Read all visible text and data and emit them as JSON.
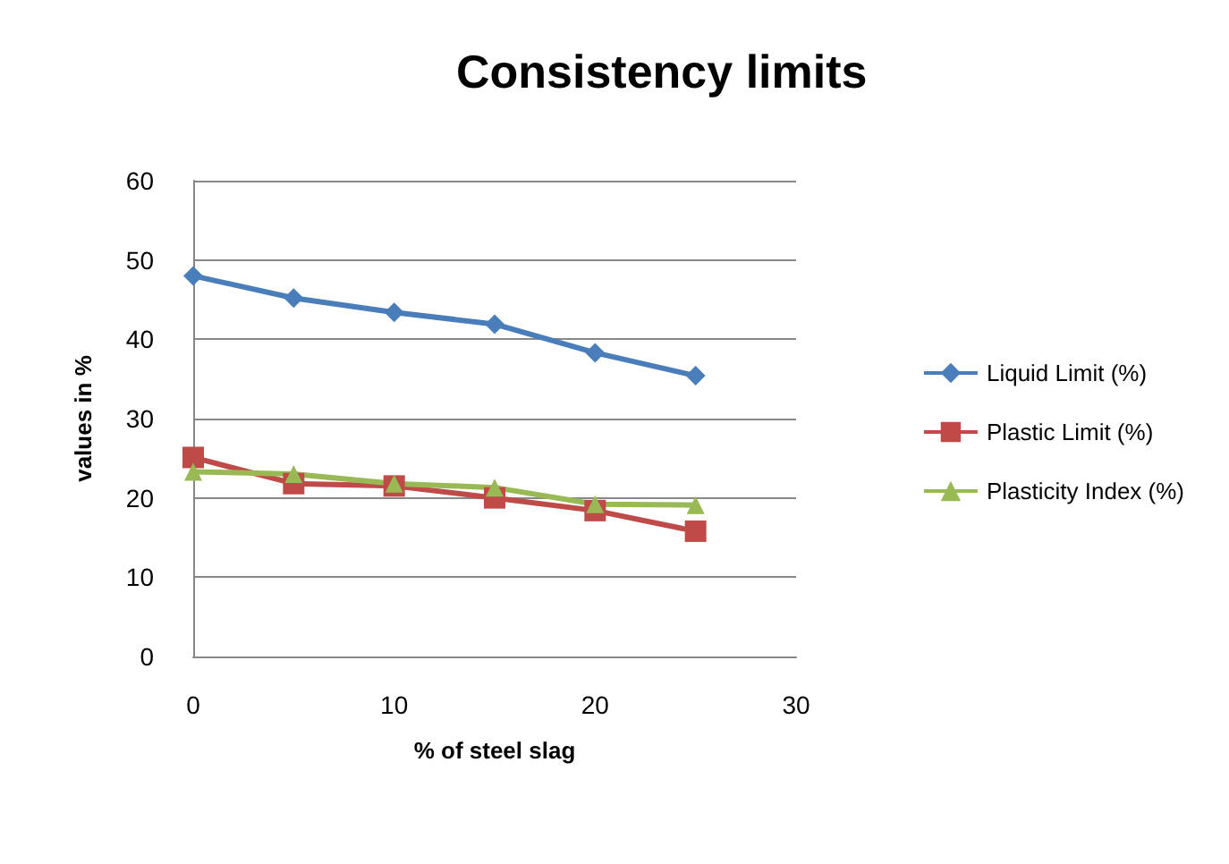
{
  "chart_data": {
    "type": "line",
    "title": "Consistency limits",
    "xlabel": "% of steel slag",
    "ylabel": "values in %",
    "x": [
      0,
      5,
      10,
      15,
      20,
      25
    ],
    "series": [
      {
        "name": "Liquid Limit (%)",
        "color": "#4a7ebb",
        "values": [
          48,
          45.2,
          43.4,
          41.9,
          38.3,
          35.4
        ],
        "marker": "diamond"
      },
      {
        "name": "Plastic Limit (%)",
        "color": "#be4b48",
        "values": [
          25.1,
          21.8,
          21.5,
          20,
          18.4,
          15.8
        ],
        "marker": "square"
      },
      {
        "name": "Plasticity Index (%)",
        "color": "#98b954",
        "values": [
          23.3,
          23,
          21.8,
          21.3,
          19.2,
          19.1
        ],
        "marker": "triangle"
      }
    ],
    "xlim": [
      0,
      30
    ],
    "xticks": [
      0,
      10,
      20,
      30
    ],
    "ylim": [
      0,
      60
    ],
    "yticks": [
      0,
      10,
      20,
      30,
      40,
      50,
      60
    ],
    "grid": "y",
    "legend": "right",
    "line_style": "solid"
  }
}
